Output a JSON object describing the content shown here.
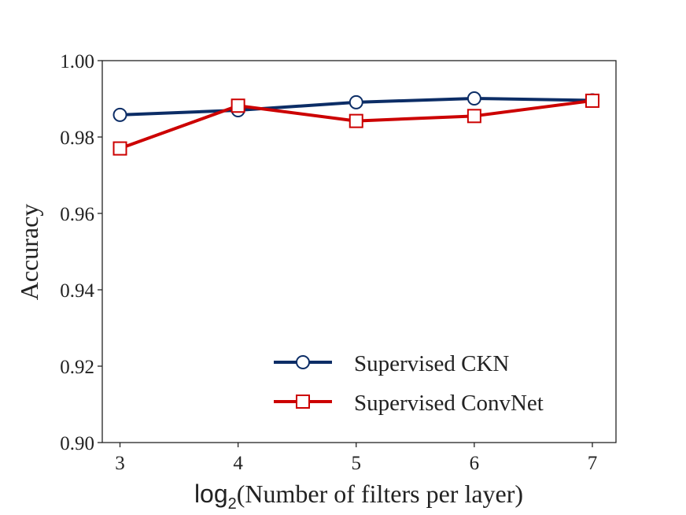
{
  "chart_data": {
    "type": "line",
    "title": "",
    "xlabel": {
      "prefix": "log",
      "subscript": "2",
      "rest": "(Number of filters per layer)"
    },
    "ylabel": "Accuracy",
    "x": [
      3,
      4,
      5,
      6,
      7
    ],
    "x_tick_labels": [
      "3",
      "4",
      "5",
      "6",
      "7"
    ],
    "xlim": [
      2.85,
      7.2
    ],
    "ylim": [
      0.9,
      1.0
    ],
    "y_ticks": [
      0.9,
      0.92,
      0.94,
      0.96,
      0.98,
      1.0
    ],
    "y_tick_labels": [
      "0.90",
      "0.92",
      "0.94",
      "0.96",
      "0.98",
      "1.00"
    ],
    "grid": false,
    "legend_position": "lower-right",
    "series": [
      {
        "name": "Supervised CKN",
        "values": [
          0.9858,
          0.987,
          0.9891,
          0.9901,
          0.9896
        ],
        "color": "#0c2d66",
        "marker": "circle"
      },
      {
        "name": "Supervised ConvNet",
        "values": [
          0.977,
          0.9882,
          0.9842,
          0.9855,
          0.9895
        ],
        "color": "#cc0000",
        "marker": "square"
      }
    ]
  }
}
